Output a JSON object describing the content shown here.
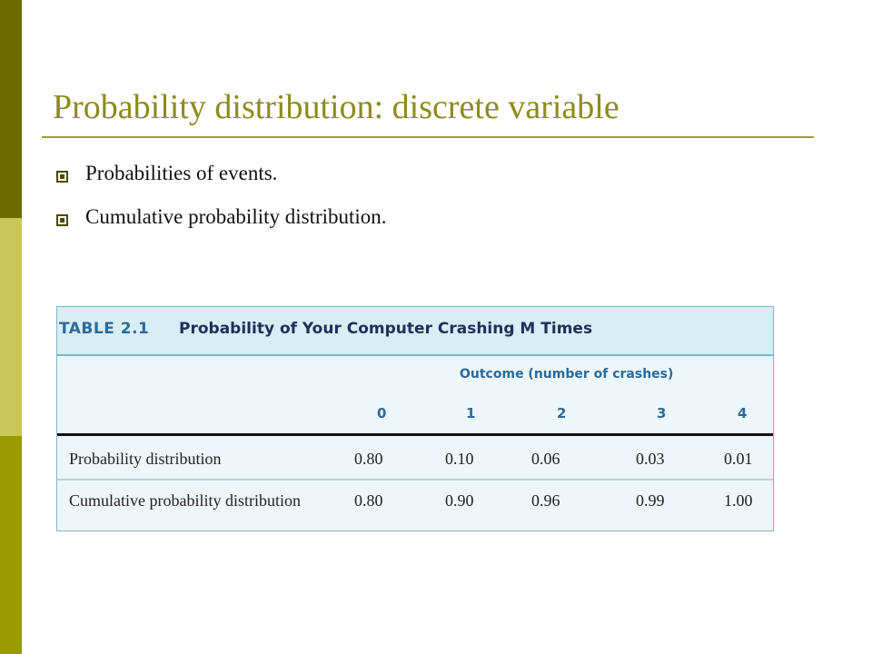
{
  "slide": {
    "title": "Probability distribution: discrete variable",
    "bullets": [
      {
        "text": "Probabilities of events."
      },
      {
        "text": "Cumulative probability distribution."
      }
    ]
  },
  "table": {
    "number": "TABLE 2.1",
    "title": "Probability of Your Computer Crashing M Times",
    "outcome_header": "Outcome (number of crashes)",
    "columns": [
      "0",
      "1",
      "2",
      "3",
      "4"
    ],
    "rows": [
      {
        "label": "Probability distribution",
        "values": [
          "0.80",
          "0.10",
          "0.06",
          "0.03",
          "0.01"
        ]
      },
      {
        "label": "Cumulative probability distribution",
        "values": [
          "0.80",
          "0.90",
          "0.96",
          "0.99",
          "1.00"
        ]
      }
    ]
  },
  "colors": {
    "title": "#8c8c1c",
    "accent_dark": "#6b6b00",
    "table_header": "#2c6a9a",
    "table_bg": "#edf6f9"
  },
  "icons": {
    "bullet": "square-bullet-icon"
  }
}
